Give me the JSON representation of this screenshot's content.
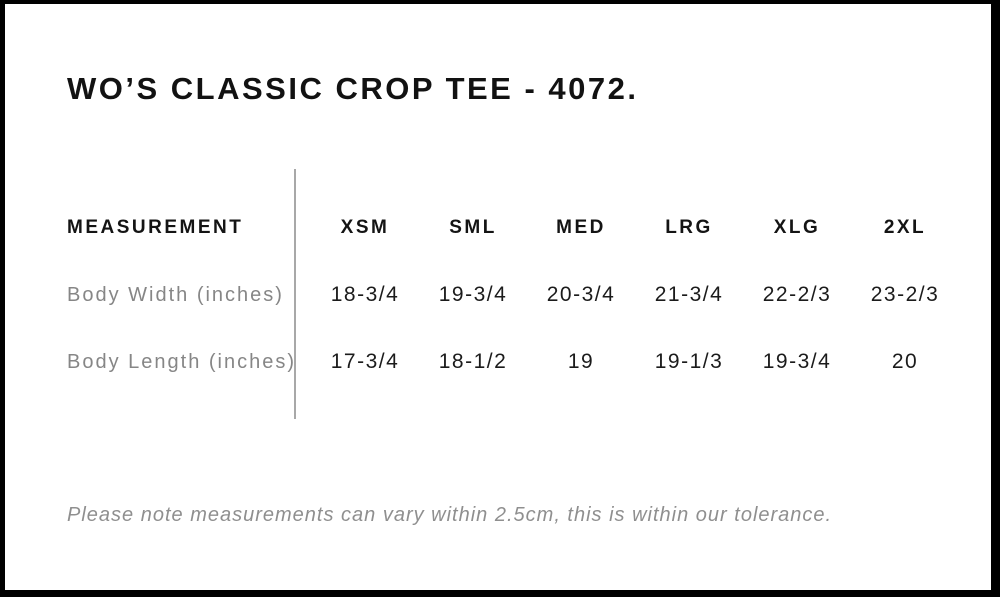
{
  "title": "WO’S CLASSIC CROP TEE - 4072.",
  "table": {
    "measurement_header": "MEASUREMENT",
    "sizes": [
      "XSM",
      "SML",
      "MED",
      "LRG",
      "XLG",
      "2XL"
    ],
    "rows": [
      {
        "label": "Body Width (inches)",
        "values": [
          "18-3/4",
          "19-3/4",
          "20-3/4",
          "21-3/4",
          "22-2/3",
          "23-2/3"
        ]
      },
      {
        "label": "Body Length (inches)",
        "values": [
          "17-3/4",
          "18-1/2",
          "19",
          "19-1/3",
          "19-3/4",
          "20"
        ]
      }
    ]
  },
  "note": "Please note measurements can vary within 2.5cm, this is within our tolerance.",
  "colors": {
    "background": "#ffffff",
    "frame_border": "#000000",
    "heading_text": "#121212",
    "value_text": "#1b1b1b",
    "muted_text": "#868686",
    "divider": "#a8a8a8"
  }
}
